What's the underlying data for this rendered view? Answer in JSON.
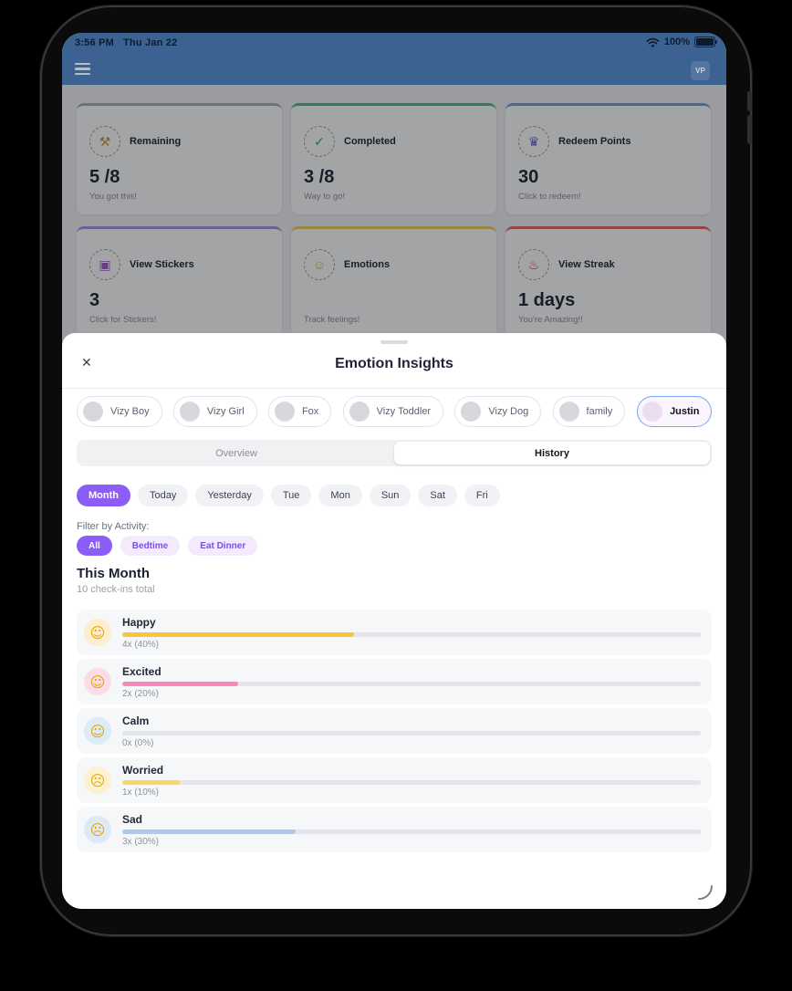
{
  "status_bar": {
    "time": "3:56 PM",
    "date": "Thu Jan 22",
    "battery": "100%"
  },
  "navbar": {
    "avatar_initials": "VP"
  },
  "dashboard": {
    "cards": [
      {
        "label": "Remaining",
        "value": "5 /8",
        "subtitle": "You got this!",
        "glyph": "⚒",
        "accent": "#a7adb5",
        "icon_color": "#c09a33"
      },
      {
        "label": "Completed",
        "value": "3 /8",
        "subtitle": "Way to go!",
        "glyph": "✓",
        "accent": "#3fbf85",
        "icon_color": "#2f9e63"
      },
      {
        "label": "Redeem Points",
        "value": "30",
        "subtitle": "Click to redeem!",
        "glyph": "♛",
        "accent": "#5f9fe8",
        "icon_color": "#6a5ccc"
      },
      {
        "label": "View Stickers",
        "value": "3",
        "subtitle": "Click for Stickers!",
        "glyph": "▣",
        "accent": "#a88fe0",
        "icon_color": "#9b59c9"
      },
      {
        "label": "Emotions",
        "value": "",
        "subtitle": "Track feelings!",
        "glyph": "☺",
        "accent": "#e8cf5a",
        "icon_color": "#d4b235"
      },
      {
        "label": "View Streak",
        "value": "1 days",
        "subtitle": "You're Amazing!!",
        "glyph": "♨",
        "accent": "#e06a62",
        "icon_color": "#cf4038"
      }
    ]
  },
  "modal": {
    "close_icon": "✕",
    "title": "Emotion Insights",
    "profiles": [
      {
        "label": "Vizy Boy"
      },
      {
        "label": "Vizy Girl"
      },
      {
        "label": "Fox"
      },
      {
        "label": "Vizy Toddler"
      },
      {
        "label": "Vizy Dog"
      },
      {
        "label": "family"
      },
      {
        "label": "Justin",
        "selected": true
      }
    ],
    "tabs": [
      {
        "label": "Overview"
      },
      {
        "label": "History",
        "selected": true
      }
    ],
    "time_filters": [
      {
        "label": "Month",
        "selected": true
      },
      {
        "label": "Today"
      },
      {
        "label": "Yesterday"
      },
      {
        "label": "Tue"
      },
      {
        "label": "Mon"
      },
      {
        "label": "Sun"
      },
      {
        "label": "Sat"
      },
      {
        "label": "Fri"
      }
    ],
    "activity": {
      "label": "Filter by Activity:",
      "options": [
        {
          "label": "All",
          "selected": true
        },
        {
          "label": "Bedtime"
        },
        {
          "label": "Eat Dinner"
        }
      ]
    },
    "summary": {
      "title": "This Month",
      "subtitle": "10 check-ins total"
    },
    "emotions": [
      {
        "name": "Happy",
        "glyph": "☺",
        "glyph_color": "#e7a500",
        "circle": "#fdeecd",
        "count": "4x (40%)",
        "pct": 40,
        "bar": "#f6c63e"
      },
      {
        "name": "Excited",
        "glyph": "☺",
        "glyph_color": "#e7a500",
        "circle": "#fbdde9",
        "count": "2x (20%)",
        "pct": 20,
        "bar": "#f888bb"
      },
      {
        "name": "Calm",
        "glyph": "☺",
        "glyph_color": "#e7a500",
        "circle": "#dcebf8",
        "count": "0x (0%)",
        "pct": 0,
        "bar": "#b8d4f1"
      },
      {
        "name": "Worried",
        "glyph": "☹",
        "glyph_color": "#e7a500",
        "circle": "#fdf2d0",
        "count": "1x (10%)",
        "pct": 10,
        "bar": "#f8d66a"
      },
      {
        "name": "Sad",
        "glyph": "☹",
        "glyph_color": "#e7a500",
        "circle": "#dde9f6",
        "count": "3x (30%)",
        "pct": 30,
        "bar": "#a9cbf0"
      }
    ]
  },
  "colors": {
    "accent_purple": "#8b5cf6",
    "navbar_blue": "#3b6291"
  }
}
